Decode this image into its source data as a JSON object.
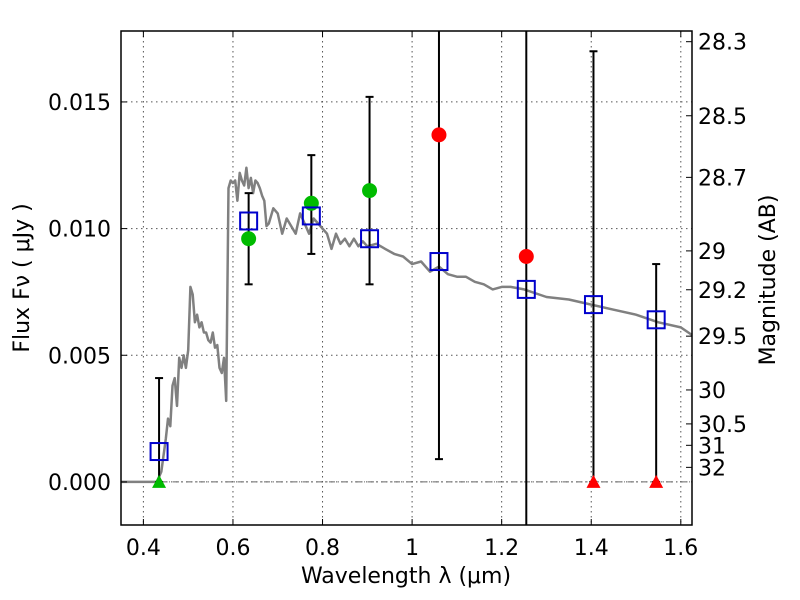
{
  "chart_data": {
    "type": "scatter",
    "xlabel": "Wavelength  λ (μm)",
    "ylabel": "Flux  Fν  ( μJy )",
    "ylabel_right": "Magnitude (AB)",
    "xlim": [
      0.35,
      1.625
    ],
    "ylim": [
      -0.0017,
      0.0178
    ],
    "xticks": [
      0.4,
      0.6,
      0.8,
      1.0,
      1.2,
      1.4,
      1.6
    ],
    "xtick_labels": [
      "0.4",
      "0.6",
      "0.8",
      "1",
      "1.2",
      "1.4",
      "1.6"
    ],
    "yticks": [
      0.0,
      0.005,
      0.01,
      0.015
    ],
    "ytick_labels": [
      "0.000",
      "0.005",
      "0.010",
      "0.015"
    ],
    "mag_ticks": [
      28.3,
      28.5,
      28.7,
      29,
      29.2,
      29.5,
      30,
      30.5,
      31,
      32
    ],
    "mag_tick_labels": [
      "28.3",
      "28.5",
      "28.7",
      "29",
      "29.2",
      "29.5",
      "30",
      "30.5",
      "31",
      "32"
    ],
    "grid": true,
    "colors": {
      "model": "#808080",
      "model_box": "#0000cc",
      "detection": "#00bb00",
      "uncertain": "#ff0000",
      "errorbar": "#000000"
    },
    "model_spectrum": {
      "x": [
        0.35,
        0.43,
        0.44,
        0.45,
        0.455,
        0.46,
        0.465,
        0.47,
        0.475,
        0.48,
        0.485,
        0.49,
        0.495,
        0.5,
        0.505,
        0.51,
        0.515,
        0.52,
        0.525,
        0.53,
        0.535,
        0.54,
        0.545,
        0.55,
        0.555,
        0.56,
        0.565,
        0.57,
        0.575,
        0.58,
        0.585,
        0.59,
        0.595,
        0.6,
        0.605,
        0.61,
        0.615,
        0.62,
        0.625,
        0.63,
        0.635,
        0.64,
        0.645,
        0.65,
        0.655,
        0.66,
        0.665,
        0.67,
        0.675,
        0.68,
        0.69,
        0.7,
        0.71,
        0.72,
        0.73,
        0.74,
        0.75,
        0.76,
        0.77,
        0.78,
        0.79,
        0.8,
        0.81,
        0.82,
        0.83,
        0.84,
        0.85,
        0.86,
        0.87,
        0.88,
        0.89,
        0.9,
        0.92,
        0.94,
        0.96,
        0.98,
        1.0,
        1.02,
        1.04,
        1.06,
        1.08,
        1.1,
        1.12,
        1.14,
        1.16,
        1.18,
        1.2,
        1.22,
        1.25,
        1.3,
        1.35,
        1.4,
        1.45,
        1.5,
        1.55,
        1.6,
        1.625
      ],
      "y": [
        0.0,
        0.0,
        0.0004,
        0.0017,
        0.0025,
        0.0022,
        0.0038,
        0.0041,
        0.003,
        0.0049,
        0.0045,
        0.005,
        0.0045,
        0.0052,
        0.0077,
        0.0074,
        0.0063,
        0.0066,
        0.0061,
        0.0063,
        0.0059,
        0.0059,
        0.0056,
        0.0055,
        0.0059,
        0.0053,
        0.0054,
        0.0045,
        0.0043,
        0.0049,
        0.0032,
        0.0116,
        0.0119,
        0.0118,
        0.0119,
        0.0111,
        0.0122,
        0.0119,
        0.0117,
        0.0124,
        0.0116,
        0.012,
        0.0114,
        0.0119,
        0.0118,
        0.0116,
        0.0113,
        0.0111,
        0.0101,
        0.0102,
        0.0108,
        0.0106,
        0.0098,
        0.0104,
        0.0101,
        0.0098,
        0.0106,
        0.0102,
        0.0098,
        0.0104,
        0.0102,
        0.01,
        0.0098,
        0.0092,
        0.0098,
        0.0094,
        0.0096,
        0.0093,
        0.0096,
        0.0093,
        0.0095,
        0.0093,
        0.0094,
        0.0092,
        0.009,
        0.0089,
        0.0086,
        0.0087,
        0.0083,
        0.0085,
        0.0082,
        0.0081,
        0.0081,
        0.0079,
        0.0078,
        0.0076,
        0.0077,
        0.0077,
        0.0076,
        0.0073,
        0.0072,
        0.007,
        0.0068,
        0.0066,
        0.0063,
        0.0061,
        0.0058
      ]
    },
    "model_band_flux": {
      "x": [
        0.435,
        0.635,
        0.775,
        0.905,
        1.06,
        1.255,
        1.405,
        1.545
      ],
      "y": [
        0.0012,
        0.0103,
        0.0105,
        0.0096,
        0.0087,
        0.0076,
        0.007,
        0.0064
      ]
    },
    "detections": {
      "x": [
        0.635,
        0.775,
        0.905
      ],
      "y": [
        0.0096,
        0.011,
        0.0115
      ]
    },
    "uncertain_points": {
      "x": [
        1.06,
        1.255
      ],
      "y": [
        0.0137,
        0.0089
      ]
    },
    "upper_limits": [
      {
        "x": 0.435,
        "y": 0.0,
        "color": "detection"
      },
      {
        "x": 1.405,
        "y": 0.0,
        "color": "uncertain"
      },
      {
        "x": 1.545,
        "y": 0.0,
        "color": "uncertain"
      }
    ],
    "error_bars": [
      {
        "x": 0.435,
        "low": 0.0,
        "high": 0.0041
      },
      {
        "x": 0.635,
        "low": 0.0078,
        "high": 0.0114
      },
      {
        "x": 0.775,
        "low": 0.009,
        "high": 0.0129
      },
      {
        "x": 0.905,
        "low": 0.0078,
        "high": 0.0152
      },
      {
        "x": 1.06,
        "low": 0.0009,
        "high": 0.0178
      },
      {
        "x": 1.255,
        "low": -0.0017,
        "high": 0.0178
      },
      {
        "x": 1.405,
        "low": 0.0,
        "high": 0.017
      },
      {
        "x": 1.545,
        "low": 0.0,
        "high": 0.0086
      }
    ]
  }
}
